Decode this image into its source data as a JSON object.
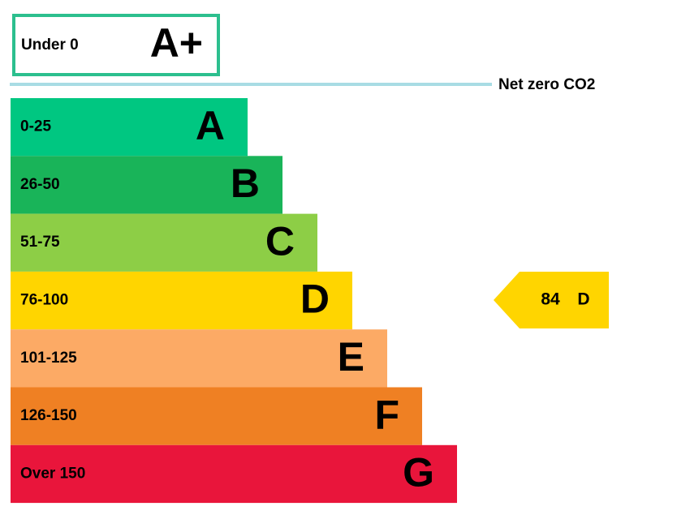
{
  "top_band": {
    "range": "Under 0",
    "letter": "A+",
    "color": "#2cbf8e"
  },
  "net_zero_label": "Net zero CO2",
  "bands": [
    {
      "range": "0-25",
      "letter": "A",
      "color": "#00c781"
    },
    {
      "range": "26-50",
      "letter": "B",
      "color": "#19b459"
    },
    {
      "range": "51-75",
      "letter": "C",
      "color": "#8dce46"
    },
    {
      "range": "76-100",
      "letter": "D",
      "color": "#ffd500"
    },
    {
      "range": "101-125",
      "letter": "E",
      "color": "#fcaa65"
    },
    {
      "range": "126-150",
      "letter": "F",
      "color": "#ef8023"
    },
    {
      "range": "Over 150",
      "letter": "G",
      "color": "#e9153b"
    }
  ],
  "current_rating": {
    "score": 84,
    "letter": "D",
    "color": "#ffd500"
  }
}
